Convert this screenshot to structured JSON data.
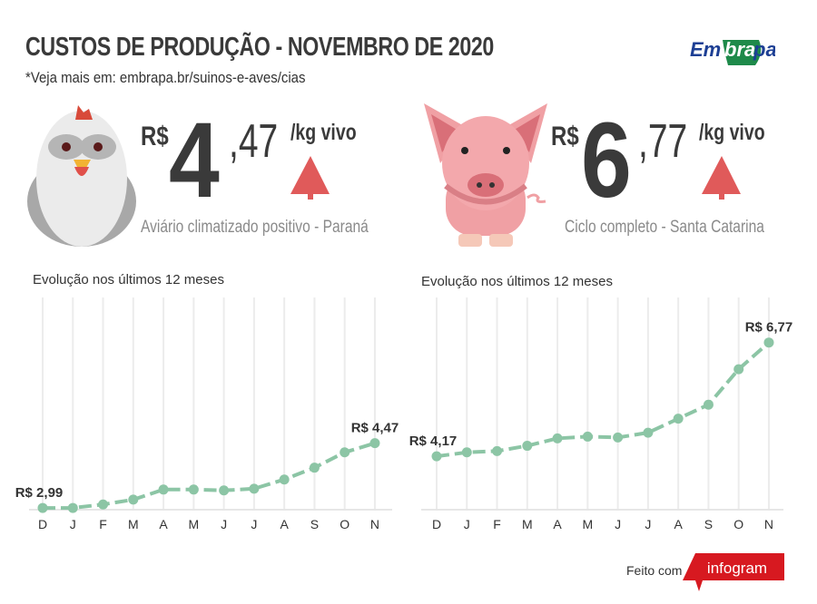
{
  "header": {
    "title": "CUSTOS DE PRODUÇÃO - NOVEMBRO DE 2020",
    "subtitle": "*Veja mais em: embrapa.br/suinos-e-aves/cias",
    "logo_text": "Embrapa"
  },
  "chicken": {
    "currency": "R$",
    "integer": "4",
    "cents": ",47",
    "unit": "/kg vivo",
    "trend": "up",
    "caption": "Aviário climatizado positivo - Paraná"
  },
  "pig": {
    "currency": "R$",
    "integer": "6",
    "cents": ",77",
    "unit": "/kg vivo",
    "trend": "up",
    "caption": "Ciclo completo - Santa Catarina"
  },
  "colors": {
    "line": "#8cc5a5",
    "arrow": "#e05a5a",
    "text": "#3a3a3a",
    "embrapa_blue": "#1d3f94",
    "embrapa_green": "#1e8a4a",
    "infogram_red": "#d71920"
  },
  "chart_data": [
    {
      "type": "line",
      "title": "Evolução nos últimos 12 meses",
      "categories": [
        "D",
        "J",
        "F",
        "M",
        "A",
        "M",
        "J",
        "J",
        "A",
        "S",
        "O",
        "N"
      ],
      "values": [
        2.99,
        2.99,
        3.07,
        3.18,
        3.41,
        3.41,
        3.39,
        3.43,
        3.64,
        3.91,
        4.26,
        4.47
      ],
      "annotations": [
        {
          "index": 0,
          "text": "R$ 2,99"
        },
        {
          "index": 11,
          "text": "R$ 4,47"
        }
      ],
      "ylim": [
        2.95,
        7.8
      ],
      "grid": "vertical"
    },
    {
      "type": "line",
      "title": "Evolução nos últimos 12 meses",
      "categories": [
        "D",
        "J",
        "F",
        "M",
        "A",
        "M",
        "J",
        "J",
        "A",
        "S",
        "O",
        "N"
      ],
      "values": [
        4.17,
        4.26,
        4.29,
        4.41,
        4.58,
        4.62,
        4.6,
        4.71,
        5.03,
        5.35,
        6.16,
        6.77
      ],
      "annotations": [
        {
          "index": 0,
          "text": "R$ 4,17"
        },
        {
          "index": 11,
          "text": "R$ 6,77"
        }
      ],
      "ylim": [
        2.95,
        7.8
      ],
      "grid": "vertical"
    }
  ],
  "footer": {
    "made_with": "Feito com",
    "brand": "infogram"
  }
}
